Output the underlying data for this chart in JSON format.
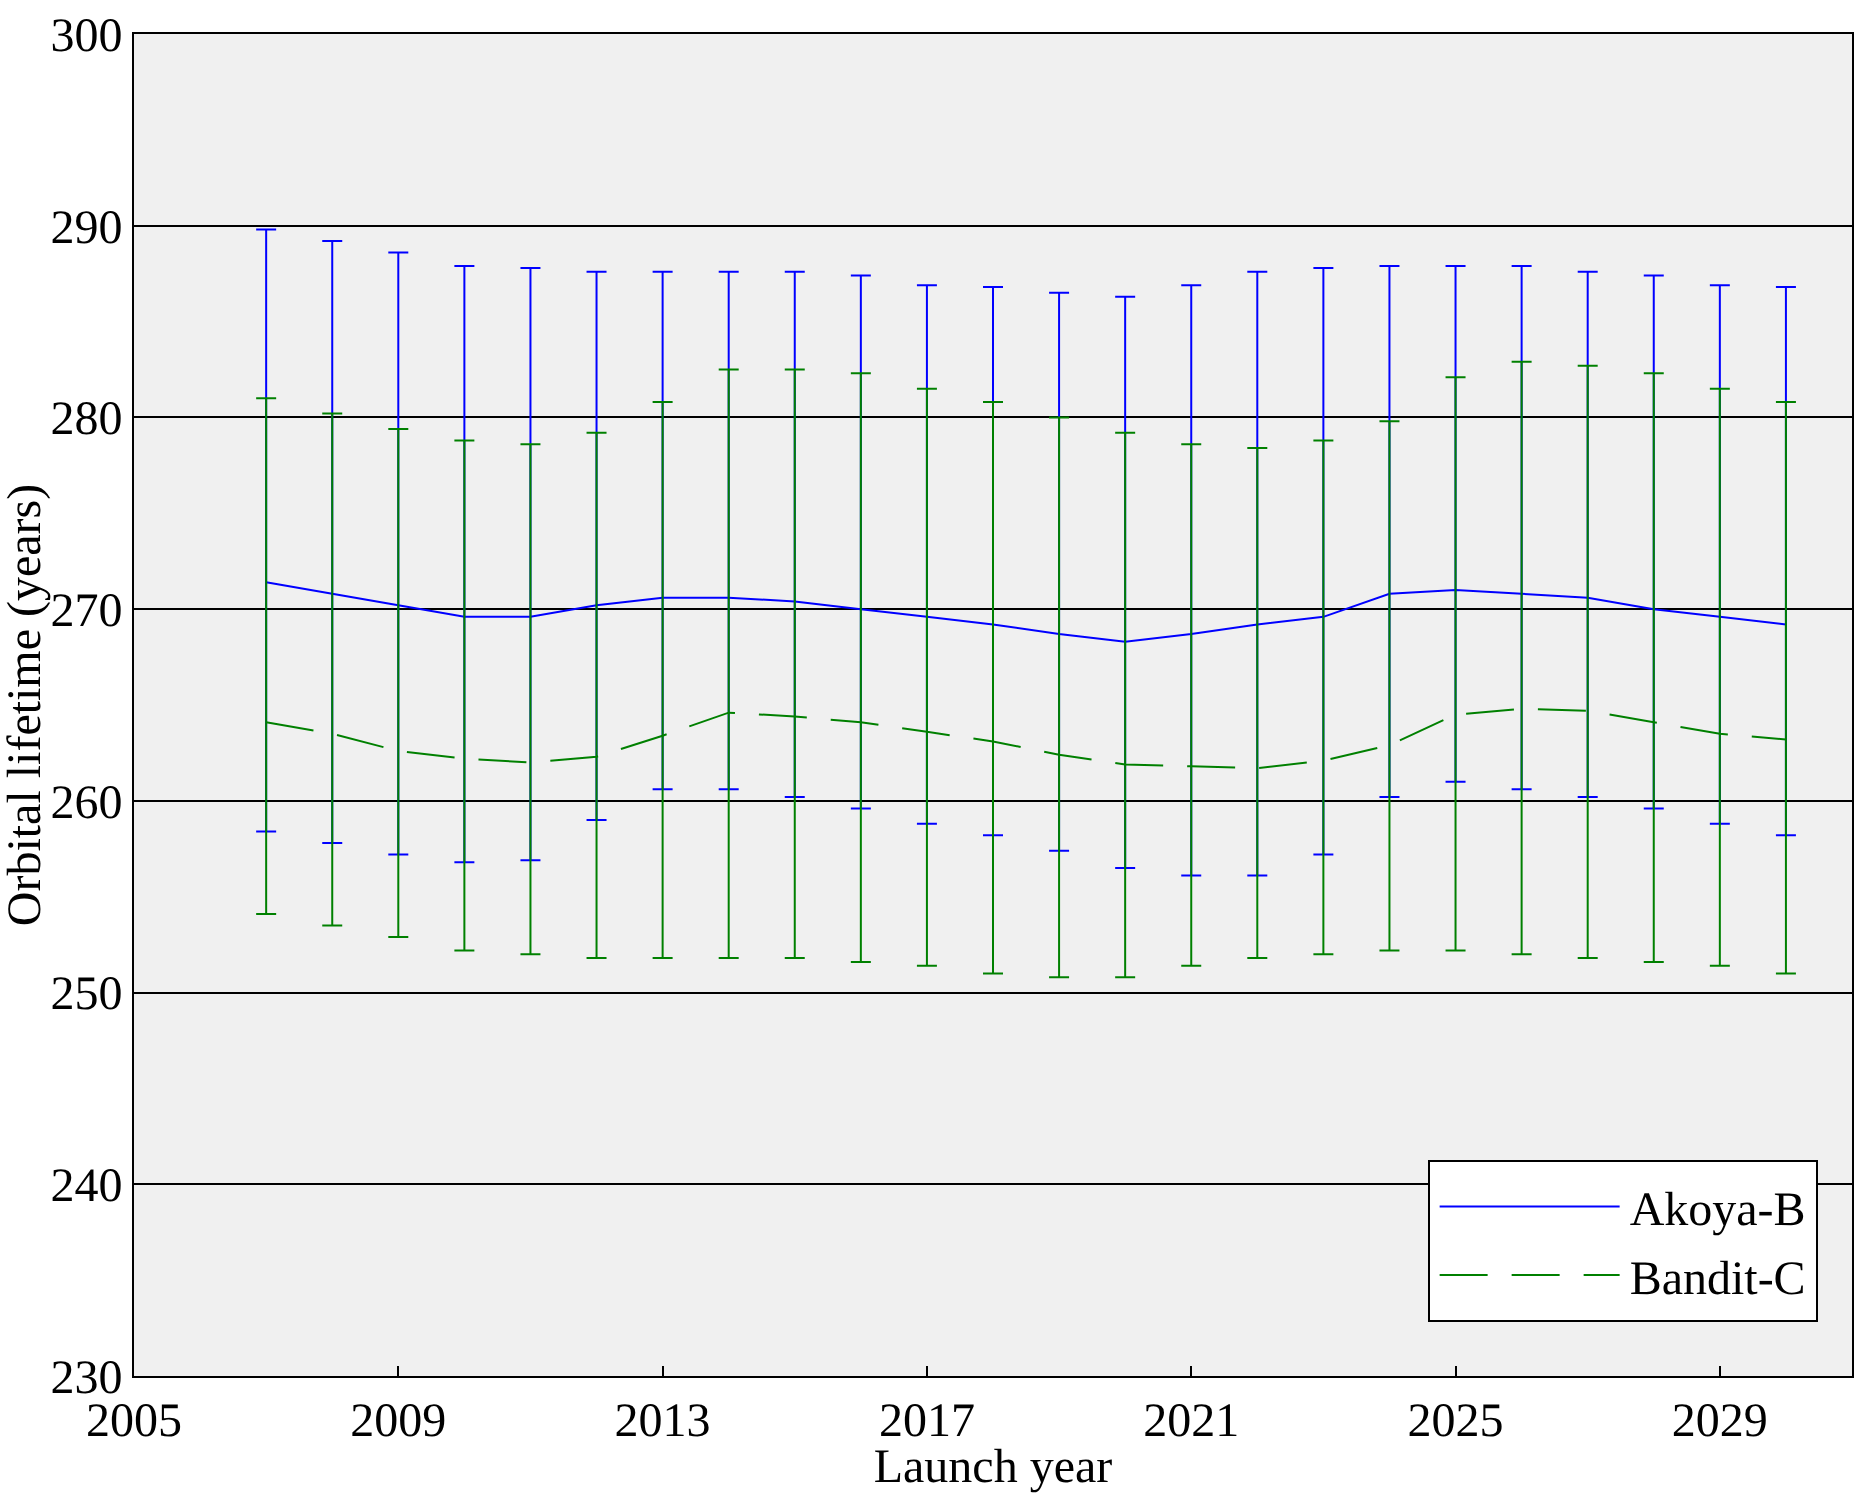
{
  "chart_data": {
    "type": "line",
    "xlabel": "Launch year",
    "ylabel": "Orbital lifetime (years)",
    "x": [
      2007,
      2008,
      2009,
      2010,
      2011,
      2012,
      2013,
      2014,
      2015,
      2016,
      2017,
      2018,
      2019,
      2020,
      2021,
      2022,
      2023,
      2024,
      2025,
      2026,
      2027,
      2028,
      2029,
      2030
    ],
    "series": [
      {
        "name": "Akoya-B",
        "color": "#0000ff",
        "line_style": "solid",
        "values": [
          271.4,
          270.8,
          270.2,
          269.6,
          269.6,
          270.2,
          270.6,
          270.6,
          270.4,
          270.0,
          269.6,
          269.2,
          268.7,
          268.3,
          268.7,
          269.2,
          269.6,
          270.8,
          271.0,
          270.8,
          270.6,
          270.0,
          269.6,
          269.2
        ],
        "errors": [
          [
            258.4,
            289.8
          ],
          [
            257.8,
            289.2
          ],
          [
            257.2,
            288.6
          ],
          [
            256.8,
            287.9
          ],
          [
            256.9,
            287.8
          ],
          [
            259.0,
            287.6
          ],
          [
            260.6,
            287.6
          ],
          [
            260.6,
            287.6
          ],
          [
            260.2,
            287.6
          ],
          [
            259.6,
            287.4
          ],
          [
            258.8,
            286.9
          ],
          [
            258.2,
            286.8
          ],
          [
            257.4,
            286.5
          ],
          [
            256.5,
            286.3
          ],
          [
            256.1,
            286.9
          ],
          [
            256.1,
            287.6
          ],
          [
            257.2,
            287.8
          ],
          [
            260.2,
            287.9
          ],
          [
            261.0,
            287.9
          ],
          [
            260.6,
            287.9
          ],
          [
            260.2,
            287.6
          ],
          [
            259.6,
            287.4
          ],
          [
            258.8,
            286.9
          ],
          [
            258.2,
            286.8
          ]
        ]
      },
      {
        "name": "Bandit-C",
        "color": "#008000",
        "line_style": "dashed",
        "values": [
          264.1,
          263.5,
          262.6,
          262.2,
          262.0,
          262.3,
          263.4,
          264.6,
          264.4,
          264.1,
          263.6,
          263.1,
          262.4,
          261.9,
          261.8,
          261.7,
          262.1,
          262.9,
          264.5,
          264.8,
          264.7,
          264.1,
          263.5,
          263.2
        ],
        "errors": [
          [
            254.1,
            281.0
          ],
          [
            253.5,
            280.2
          ],
          [
            252.9,
            279.4
          ],
          [
            252.2,
            278.8
          ],
          [
            252.0,
            278.6
          ],
          [
            251.8,
            279.2
          ],
          [
            251.8,
            280.8
          ],
          [
            251.8,
            282.5
          ],
          [
            251.8,
            282.5
          ],
          [
            251.6,
            282.3
          ],
          [
            251.4,
            281.5
          ],
          [
            251.0,
            280.8
          ],
          [
            250.8,
            280.0
          ],
          [
            250.8,
            279.2
          ],
          [
            251.4,
            278.6
          ],
          [
            251.8,
            278.4
          ],
          [
            252.0,
            278.8
          ],
          [
            252.2,
            279.8
          ],
          [
            252.2,
            282.1
          ],
          [
            252.0,
            282.9
          ],
          [
            251.8,
            282.7
          ],
          [
            251.6,
            282.3
          ],
          [
            251.4,
            281.5
          ],
          [
            251.0,
            280.8
          ]
        ]
      }
    ],
    "xlim": [
      2005,
      2031
    ],
    "xticks": [
      2005,
      2009,
      2013,
      2017,
      2021,
      2025,
      2029
    ],
    "ylim": [
      230,
      300
    ],
    "yticks": [
      230,
      240,
      250,
      260,
      270,
      280,
      290,
      300
    ],
    "grid": "y",
    "legend": "bottom right",
    "marker": "none"
  }
}
